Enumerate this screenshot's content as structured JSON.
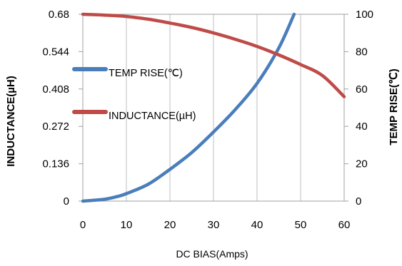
{
  "chart_data": {
    "type": "line",
    "xlabel": "DC  BIAS(Amps)",
    "ylabel_left": "INDUCTANCE(µH)",
    "ylabel_right": "TEMP RISE(℃)",
    "xlim": [
      0,
      60
    ],
    "ylim_left": [
      0,
      0.68
    ],
    "ylim_right": [
      0,
      100
    ],
    "x_ticks": [
      "0",
      "10",
      "20",
      "30",
      "40",
      "50",
      "60"
    ],
    "y_left_ticks": [
      "0",
      "0.136",
      "0.272",
      "0.408",
      "0.544",
      "0.68"
    ],
    "y_right_ticks": [
      "0",
      "20",
      "40",
      "60",
      "80",
      "100"
    ],
    "grid": "vertical",
    "legend_position": "left",
    "series": [
      {
        "name": "TEMP RISE(℃)",
        "axis": "right",
        "color": "#4a7ebb",
        "x": [
          0,
          5,
          8,
          10,
          15,
          20,
          25,
          30,
          35,
          40,
          45,
          48.5
        ],
        "y": [
          0,
          1,
          2.5,
          4,
          9,
          17,
          26,
          37,
          49,
          63,
          82,
          100
        ]
      },
      {
        "name": "INDUCTANCE(µH)",
        "axis": "left",
        "color": "#be4b48",
        "x": [
          0,
          5,
          10,
          15,
          20,
          25,
          30,
          35,
          40,
          45,
          50,
          55,
          60
        ],
        "y": [
          0.68,
          0.677,
          0.672,
          0.662,
          0.648,
          0.632,
          0.612,
          0.589,
          0.563,
          0.532,
          0.497,
          0.457,
          0.38
        ]
      }
    ]
  }
}
